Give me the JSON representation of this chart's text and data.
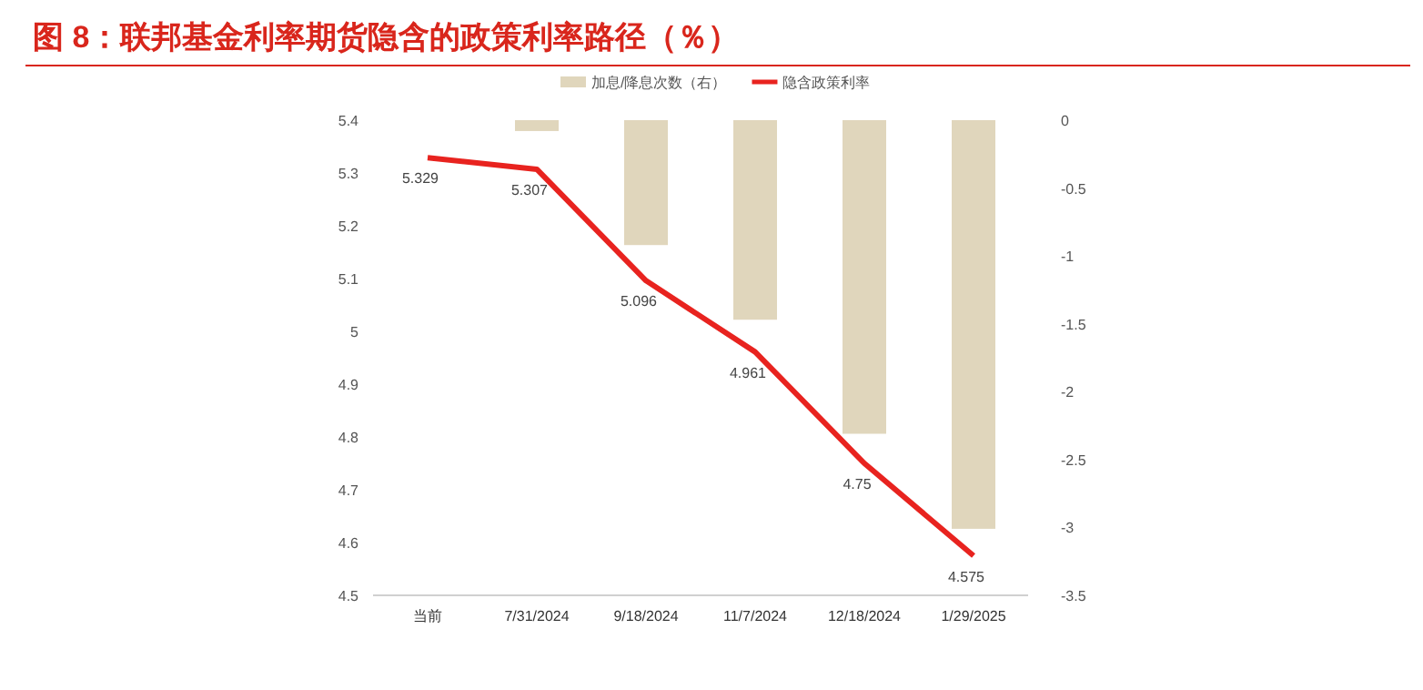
{
  "chart_data": {
    "type": "bar",
    "title": "图 8：联邦基金利率期货隐含的政策利率路径（％）",
    "categories": [
      "当前",
      "7/31/2024",
      "9/18/2024",
      "11/7/2024",
      "12/18/2024",
      "1/29/2025"
    ],
    "series": [
      {
        "name": "加息/降息次数（右）",
        "axis": "y2",
        "color": "#e0d6bc",
        "values": [
          null,
          -0.08,
          -0.92,
          -1.47,
          -2.31,
          -3.01
        ]
      },
      {
        "name": "隐含政策利率",
        "type": "line",
        "color": "#e8231f",
        "values": [
          5.329,
          5.307,
          5.096,
          4.961,
          4.75,
          4.575
        ],
        "value_labels": [
          "5.329",
          "5.307",
          "5.096",
          "4.961",
          "4.75",
          "4.575"
        ]
      }
    ],
    "ylim": [
      4.5,
      5.4
    ],
    "yticks": [
      4.5,
      4.6,
      4.7,
      4.8,
      4.9,
      5,
      5.1,
      5.2,
      5.3,
      5.4
    ],
    "y2lim": [
      -3.5,
      0
    ],
    "y2ticks": [
      -3.5,
      -3,
      -2.5,
      -2,
      -1.5,
      -1,
      -0.5,
      0
    ],
    "legend": "top",
    "grid": false,
    "marker": "none",
    "line_style": "solid"
  }
}
